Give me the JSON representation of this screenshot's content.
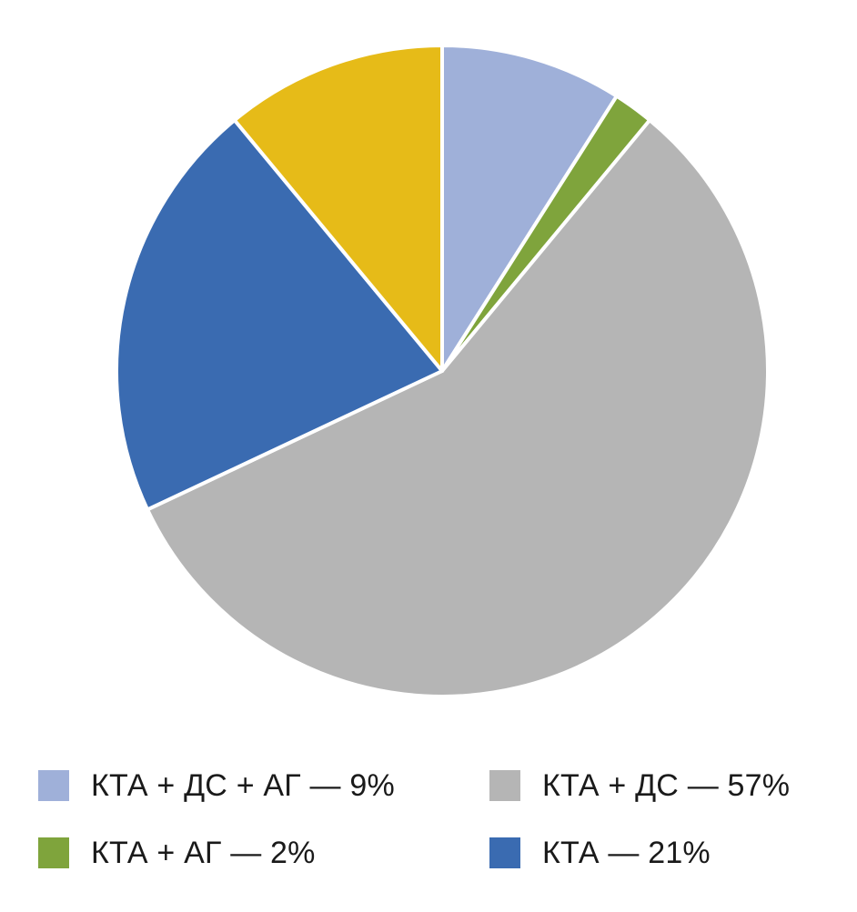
{
  "chart_data": {
    "type": "pie",
    "start": "12 o'clock",
    "direction": "clockwise",
    "slices": [
      {
        "label": "КТА + ДС + АГ — 9%",
        "value": 9,
        "color": "#9fb0d9"
      },
      {
        "label": "КТА + АГ — 2%",
        "value": 2,
        "color": "#7fa43c"
      },
      {
        "label": "КТА + ДС — 57%",
        "value": 57,
        "color": "#b5b5b5"
      },
      {
        "label": "КТА — 21%",
        "value": 21,
        "color": "#3a6bb1"
      },
      {
        "label": "",
        "value": 11,
        "color": "#e6bb18"
      }
    ],
    "legend": [
      {
        "label": "КТА + ДС + АГ — 9%",
        "color": "#9fb0d9"
      },
      {
        "label": "КТА + ДС — 57%",
        "color": "#b5b5b5"
      },
      {
        "label": "КТА + АГ — 2%",
        "color": "#7fa43c"
      },
      {
        "label": "КТА — 21%",
        "color": "#3a6bb1"
      }
    ],
    "legend_placement": "bottom"
  }
}
